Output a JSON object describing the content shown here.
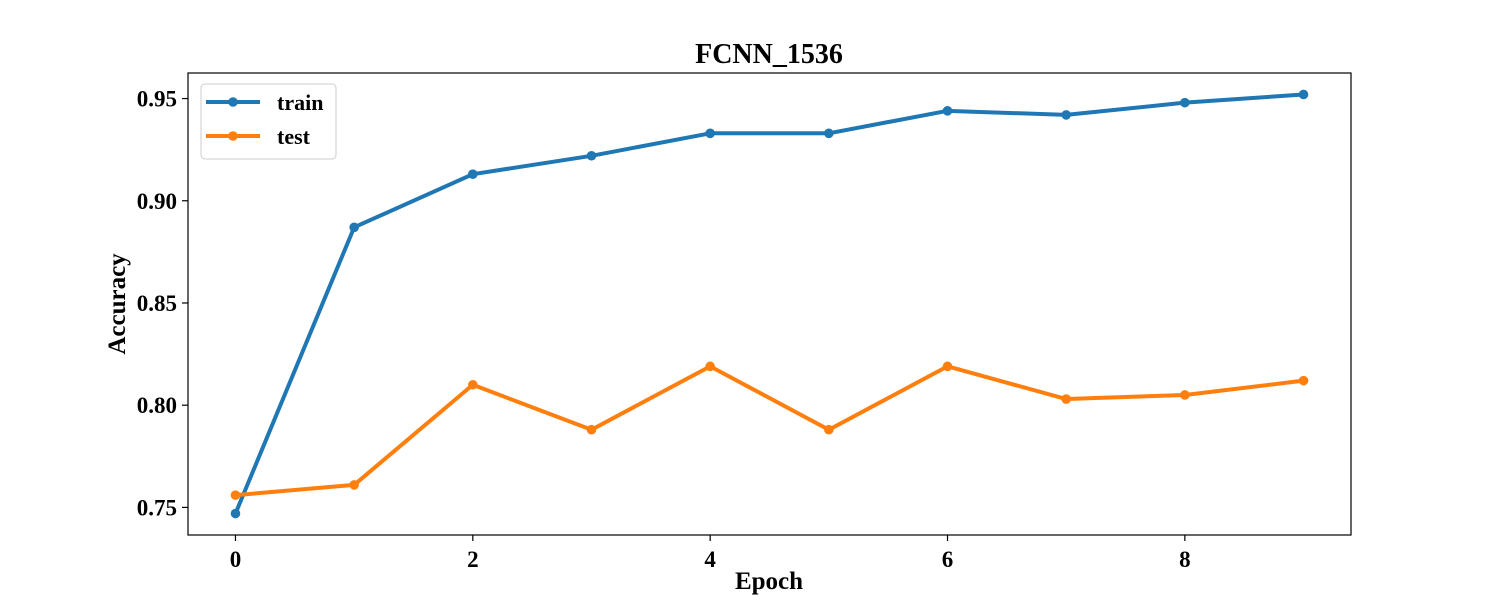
{
  "chart_data": {
    "type": "line",
    "title": "FCNN_1536",
    "xlabel": "Epoch",
    "ylabel": "Accuracy",
    "xlim": [
      -0.4,
      9.4
    ],
    "ylim": [
      0.7365,
      0.9625
    ],
    "xticks": [
      0,
      2,
      4,
      6,
      8
    ],
    "yticks": [
      0.75,
      0.8,
      0.85,
      0.9,
      0.95
    ],
    "ytick_labels": [
      "0.75",
      "0.80",
      "0.85",
      "0.90",
      "0.95"
    ],
    "grid": false,
    "legend_position": "top-left",
    "x": [
      0,
      1,
      2,
      3,
      4,
      5,
      6,
      7,
      8,
      9
    ],
    "series": [
      {
        "name": "train",
        "color": "#1f77b4",
        "values": [
          0.747,
          0.887,
          0.913,
          0.922,
          0.933,
          0.933,
          0.944,
          0.942,
          0.948,
          0.952
        ]
      },
      {
        "name": "test",
        "color": "#ff7f0e",
        "values": [
          0.756,
          0.761,
          0.81,
          0.788,
          0.819,
          0.788,
          0.819,
          0.803,
          0.805,
          0.812
        ]
      }
    ]
  }
}
